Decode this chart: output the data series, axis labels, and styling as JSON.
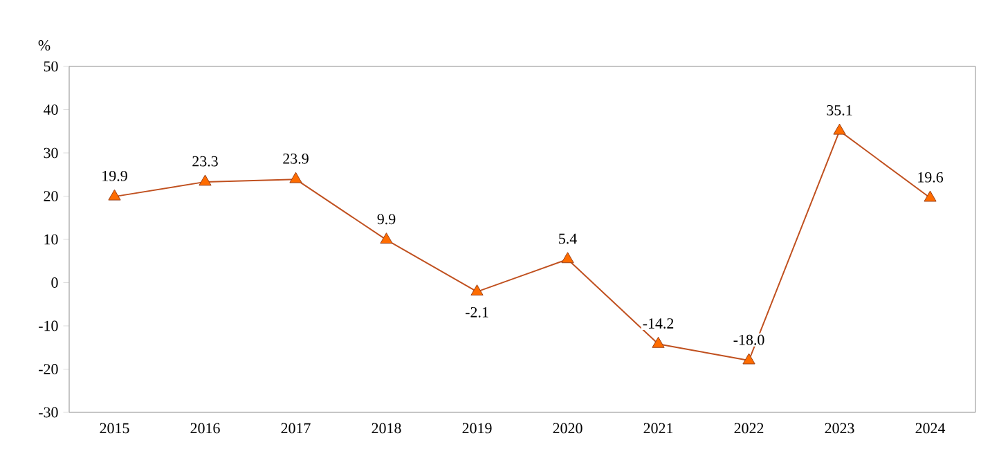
{
  "chart_data": {
    "type": "line",
    "ylabel": "%",
    "categories": [
      "2015",
      "2016",
      "2017",
      "2018",
      "2019",
      "2020",
      "2021",
      "2022",
      "2023",
      "2024"
    ],
    "values": [
      19.9,
      23.3,
      23.9,
      9.9,
      -2.1,
      5.4,
      -14.2,
      -18.0,
      35.1,
      19.6
    ],
    "value_labels": [
      "19.9",
      "23.3",
      "23.9",
      "9.9",
      "-2.1",
      "5.4",
      "-14.2",
      "-18.0",
      "35.1",
      "19.6"
    ],
    "color": "#c0501f",
    "marker": "triangle",
    "ylim": [
      -30,
      50
    ],
    "yticks": [
      -30,
      -20,
      -10,
      0,
      10,
      20,
      30,
      40,
      50
    ],
    "grid": false
  }
}
